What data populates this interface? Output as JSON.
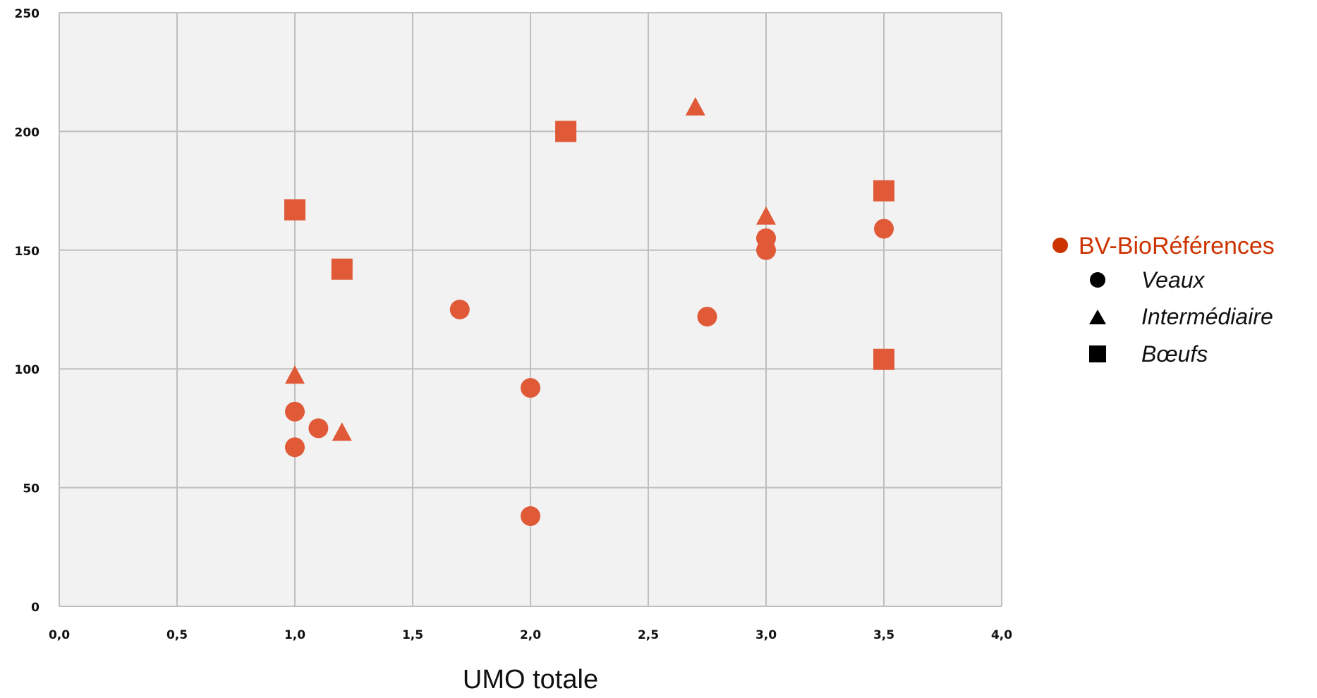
{
  "chart_data": {
    "type": "scatter",
    "title": "",
    "xlabel": "UMO totale",
    "ylabel": "",
    "xlim": [
      0,
      4
    ],
    "ylim": [
      0,
      250
    ],
    "x_ticks": [
      "0,0",
      "0,5",
      "1,0",
      "1,5",
      "2,0",
      "2,5",
      "3,0",
      "3,5",
      "4,0"
    ],
    "x_tick_values": [
      0,
      0.5,
      1,
      1.5,
      2,
      2.5,
      3,
      3.5,
      4
    ],
    "y_ticks": [
      "0",
      "50",
      "100",
      "150",
      "200",
      "250"
    ],
    "y_tick_values": [
      0,
      50,
      100,
      150,
      200,
      250
    ],
    "grid": true,
    "legend_position": "right",
    "color": "#e05a38",
    "legend_color": "#cc3300",
    "series": [
      {
        "name": "Veaux",
        "marker": "circle",
        "points": [
          {
            "x": 1.0,
            "y": 82
          },
          {
            "x": 1.0,
            "y": 67
          },
          {
            "x": 1.1,
            "y": 75
          },
          {
            "x": 1.7,
            "y": 125
          },
          {
            "x": 2.0,
            "y": 92
          },
          {
            "x": 2.0,
            "y": 38
          },
          {
            "x": 2.75,
            "y": 122
          },
          {
            "x": 3.0,
            "y": 155
          },
          {
            "x": 3.0,
            "y": 150
          },
          {
            "x": 3.5,
            "y": 159
          }
        ]
      },
      {
        "name": "Intermédiaire",
        "marker": "triangle",
        "points": [
          {
            "x": 1.0,
            "y": 97
          },
          {
            "x": 1.2,
            "y": 73
          },
          {
            "x": 2.7,
            "y": 210
          },
          {
            "x": 3.0,
            "y": 164
          }
        ]
      },
      {
        "name": "Bœufs",
        "marker": "square",
        "points": [
          {
            "x": 1.0,
            "y": 167
          },
          {
            "x": 1.2,
            "y": 142
          },
          {
            "x": 2.15,
            "y": 200
          },
          {
            "x": 3.5,
            "y": 175
          },
          {
            "x": 3.5,
            "y": 104
          }
        ]
      }
    ],
    "legend": {
      "group": "BV-BioRéférences",
      "items": [
        {
          "label": "Veaux",
          "marker": "circle"
        },
        {
          "label": "Intermédiaire",
          "marker": "triangle"
        },
        {
          "label": "Bœufs",
          "marker": "square"
        }
      ]
    }
  }
}
